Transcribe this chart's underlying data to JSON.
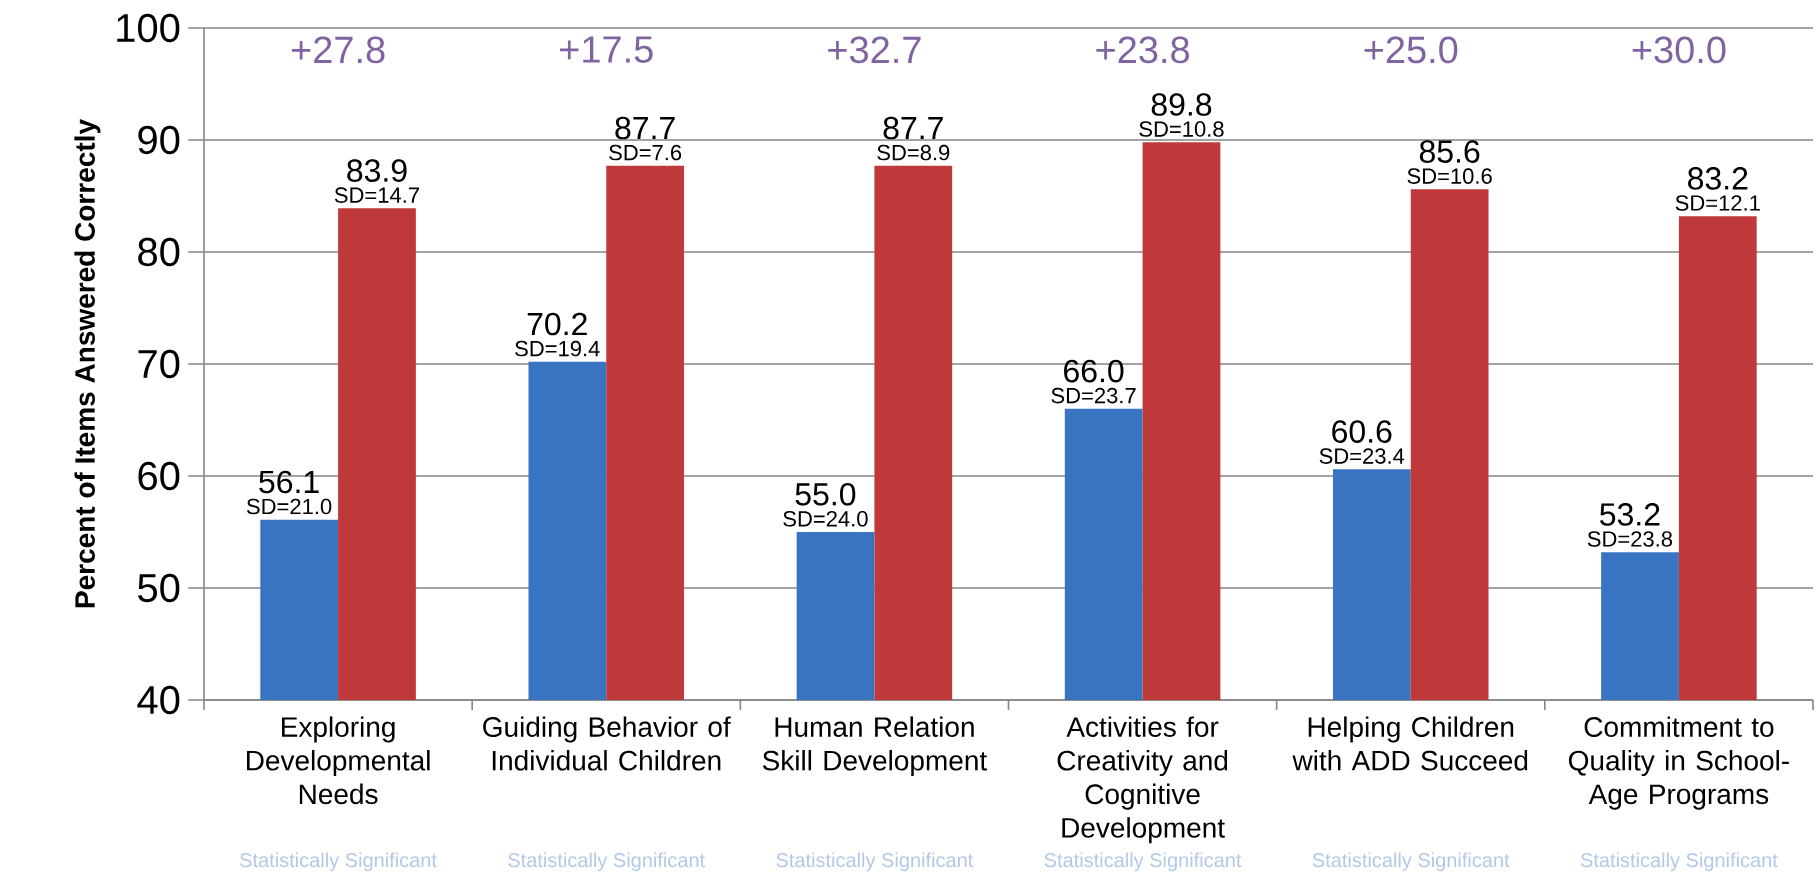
{
  "chart_data": {
    "type": "bar",
    "ylabel": "Percent of Items Answered Correctly",
    "categories": [
      "Exploring Developmental Needs",
      "Guiding Behavior of Individual Children",
      "Human Relation Skill Development",
      "Activities for Creativity and Cognitive Development",
      "Helping Children with ADD Succeed",
      "Commitment to Quality in School-Age Programs"
    ],
    "series": [
      {
        "color": "#3874c0",
        "values": [
          56.1,
          70.2,
          55.0,
          66.0,
          60.6,
          53.2
        ],
        "value_labels": [
          "56.1",
          "70.2",
          "55.0",
          "66.0",
          "60.6",
          "53.2"
        ]
      },
      {
        "color": "#c0393a",
        "values": [
          83.9,
          87.7,
          87.7,
          89.8,
          85.6,
          83.2
        ],
        "value_labels": [
          "83.9",
          "87.7",
          "87.7",
          "89.8",
          "85.6",
          "83.2"
        ]
      }
    ],
    "ylim": [
      40,
      100
    ],
    "yticks": [
      40,
      50,
      60,
      70,
      80,
      90,
      100
    ],
    "grid": "y",
    "annotations": [
      "+27.8",
      "+17.5",
      "+32.7",
      "+23.8",
      "+25.0",
      "+30.0",
      "SD=21.0",
      "SD=19.4",
      "SD=24.0",
      "SD=23.7",
      "SD=23.4",
      "SD=23.8",
      "SD=14.7",
      "SD=7.6",
      "SD=8.9",
      "SD=10.8",
      "SD=10.6",
      "SD=12.1",
      "Statistically Significant",
      "Statistically Significant",
      "Statistically Significant",
      "Statistically Significant",
      "Statistically Significant",
      "Statistically Significant"
    ]
  }
}
